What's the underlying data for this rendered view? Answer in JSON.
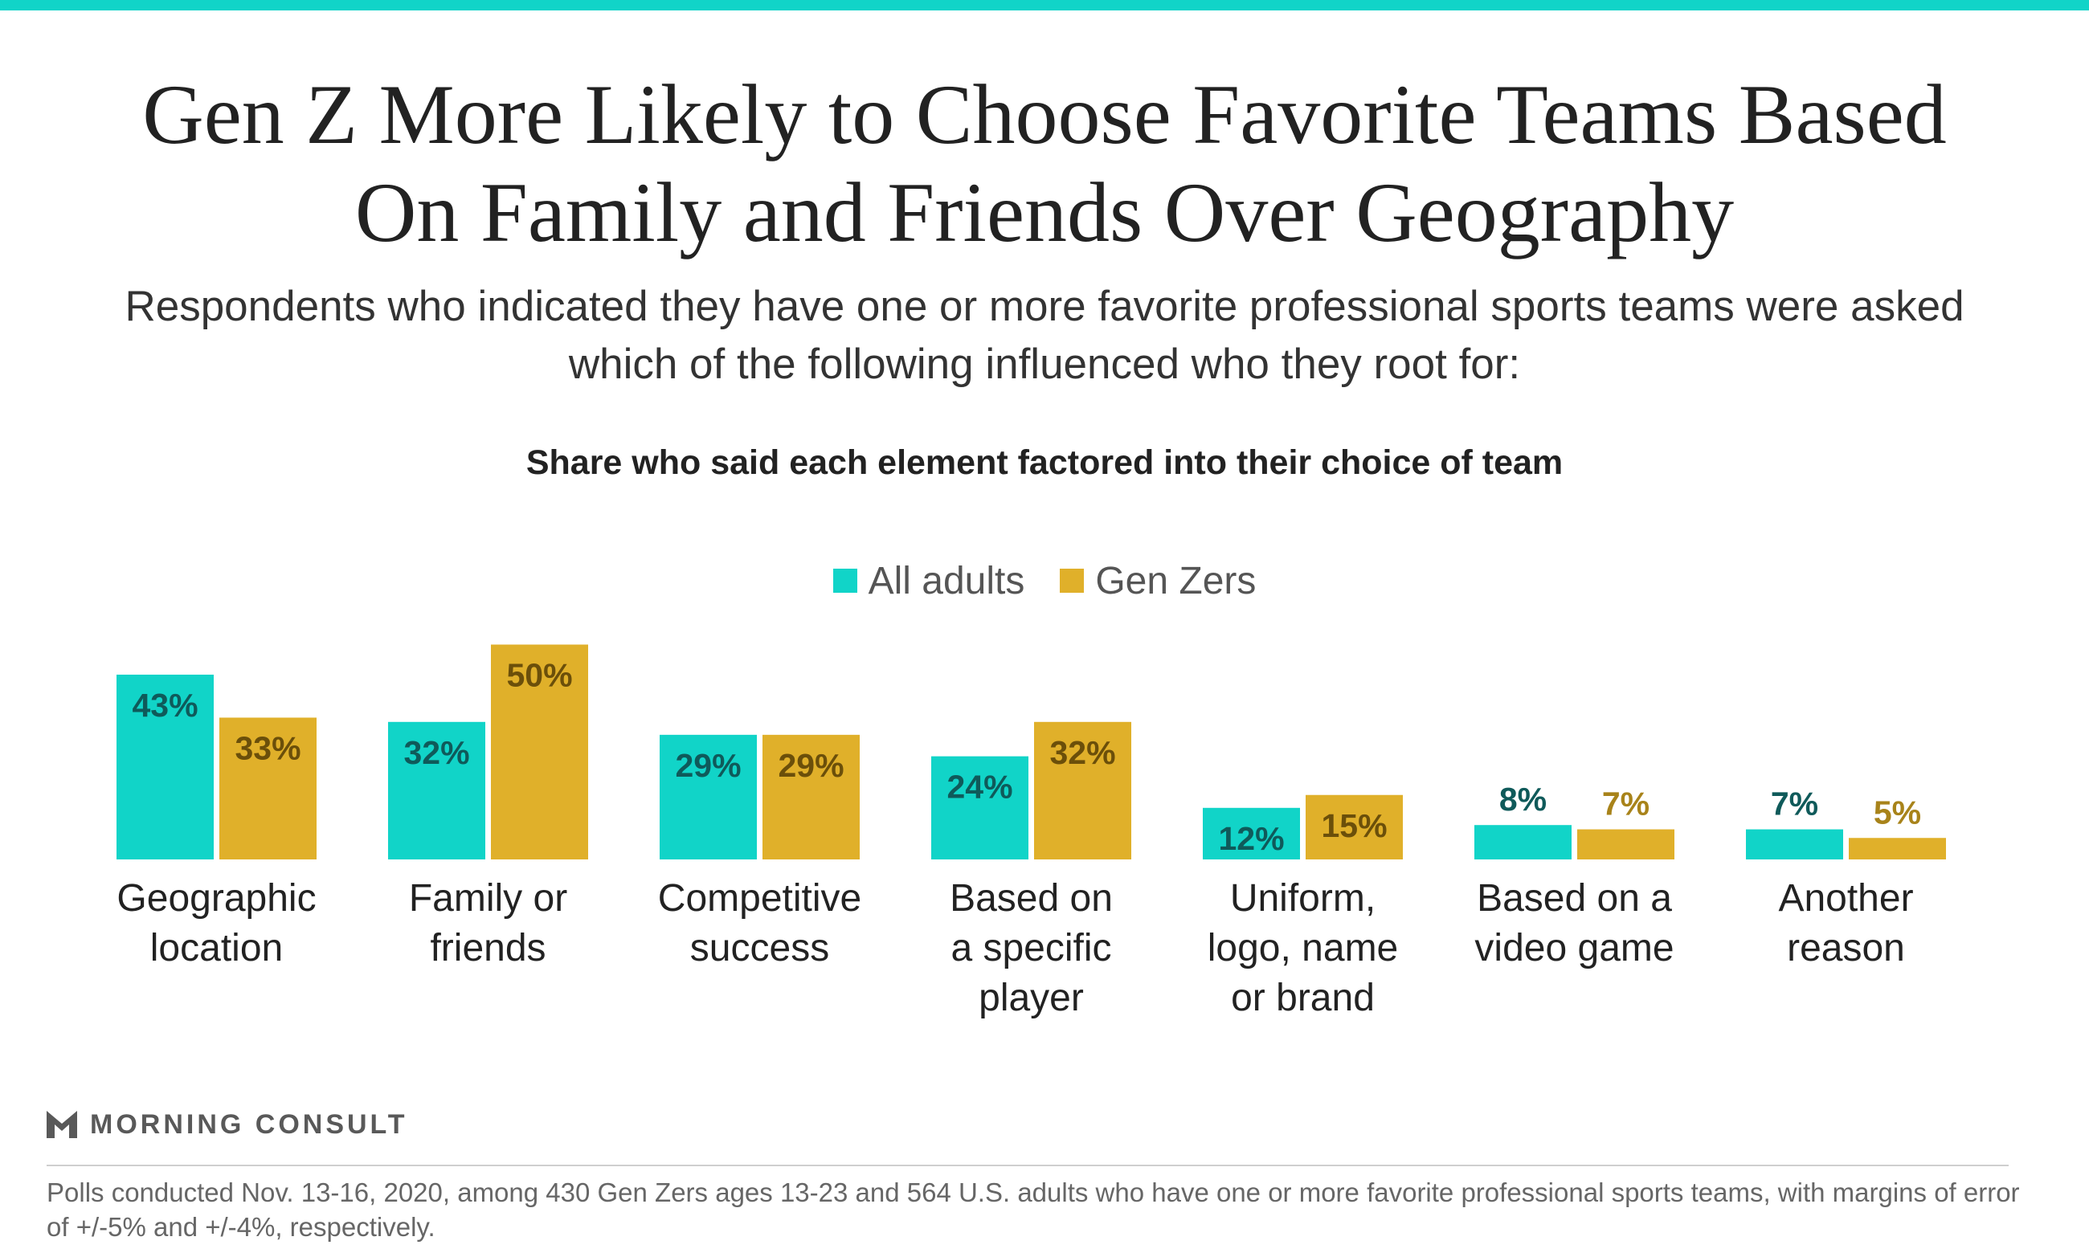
{
  "colors": {
    "top_bar": "#11d4c8",
    "all_adults": "#11d4c8",
    "gen_zers": "#e0b02a",
    "all_adults_label": "#0f5a5a",
    "gen_zers_label": "#6b4f0a",
    "gen_zers_label_outside": "#a8831a"
  },
  "title": "Gen Z More Likely to Choose Favorite Teams Based On Family and Friends Over Geography",
  "subtitle": "Respondents who indicated they have one or more favorite professional sports teams were asked which of the following influenced who they root for:",
  "chart_heading": "Share who said each element factored into their choice of team",
  "legend": {
    "all_adults": "All adults",
    "gen_zers": "Gen Zers"
  },
  "chart_data": {
    "type": "bar",
    "categories": [
      [
        "Geographic",
        "location"
      ],
      [
        "Family or",
        "friends"
      ],
      [
        "Competitive",
        "success"
      ],
      [
        "Based on",
        "a specific",
        "player"
      ],
      [
        "Uniform,",
        "logo, name",
        "or brand"
      ],
      [
        "Based on a",
        "video game"
      ],
      [
        "Another",
        "reason"
      ]
    ],
    "series": [
      {
        "name": "All adults",
        "values": [
          43,
          32,
          29,
          24,
          12,
          8,
          7
        ],
        "labels": [
          "43%",
          "32%",
          "29%",
          "24%",
          "12%",
          "8%",
          "7%"
        ]
      },
      {
        "name": "Gen Zers",
        "values": [
          33,
          50,
          29,
          32,
          15,
          7,
          5
        ],
        "labels": [
          "33%",
          "50%",
          "29%",
          "32%",
          "15%",
          "7%",
          "5%"
        ]
      }
    ],
    "ylim": [
      0,
      50
    ],
    "grid": false,
    "legend_position": "top-center"
  },
  "logo": {
    "text": "MORNING CONSULT",
    "icon": "morning-consult-m-icon"
  },
  "footnote": "Polls conducted Nov. 13-16, 2020, among 430 Gen Zers ages 13-23 and 564 U.S. adults who have one or more favorite professional sports teams, with margins of error of +/-5% and +/-4%, respectively."
}
